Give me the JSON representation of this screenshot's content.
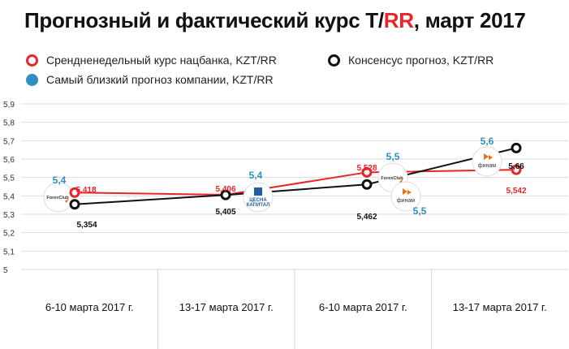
{
  "title": {
    "main": "Прогнозный и фактический курс Т/",
    "accent": "RR",
    "suffix": ", март 2017"
  },
  "legend": {
    "items": [
      {
        "label": "Срендненедельный курс нацбанка, KZT/RR",
        "marker": "red-ring"
      },
      {
        "label": "Консенсус прогноз, KZT/RR",
        "marker": "black-ring"
      },
      {
        "label": "Самый близкий прогноз компании, KZT/RR",
        "marker": "blue-dot"
      }
    ]
  },
  "colors": {
    "nbk": "#e8262a",
    "consensus": "#111111",
    "closest": "#2f8fc2",
    "grid": "#d9d9d9"
  },
  "chart_data": {
    "type": "line",
    "categories": [
      "6-10 марта 2017 г.",
      "13-17 марта 2017 г.",
      "6-10 марта 2017 г.",
      "13-17 марта 2017 г."
    ],
    "ylim": [
      5,
      5.9
    ],
    "yticks": [
      "5",
      "5,1",
      "5,2",
      "5,3",
      "5,4",
      "5,5",
      "5,6",
      "5,7",
      "5,8",
      "5,9"
    ],
    "grid": "horizontal",
    "series": [
      {
        "name": "Срендненедельный курс нацбанка, KZT/RR",
        "color": "#e8262a",
        "values": [
          5.418,
          5.406,
          5.528,
          5.542
        ],
        "labels": [
          "5,418",
          "5,406",
          "5,528",
          "5,542"
        ]
      },
      {
        "name": "Консенсус прогноз, KZT/RR",
        "color": "#111111",
        "values": [
          5.354,
          5.405,
          5.462,
          5.66
        ],
        "labels": [
          "5,354",
          "5,405",
          "5,462",
          "5,66"
        ]
      },
      {
        "name": "Самый близкий прогноз компании, KZT/RR",
        "color": "#2f8fc2",
        "values": [
          5.4,
          5.4,
          5.5,
          5.6
        ],
        "labels": [
          "5,4",
          "5,4",
          "5,5",
          "5,6"
        ],
        "extra_label": "5,5"
      }
    ],
    "company_logos": [
      {
        "category": 0,
        "name": "ForexClub",
        "lines": [
          "ForexClub"
        ]
      },
      {
        "category": 1,
        "name": "Цесна Капитал",
        "lines": [
          "ЦЕСНА",
          "КАПИТАЛ"
        ]
      },
      {
        "category": 2,
        "name": "ForexClub",
        "lines": [
          "ForexClub"
        ]
      },
      {
        "category": 2,
        "name": "Финам",
        "lines": [
          "финам"
        ]
      },
      {
        "category": 3,
        "name": "Финам",
        "lines": [
          "финам"
        ]
      }
    ]
  }
}
